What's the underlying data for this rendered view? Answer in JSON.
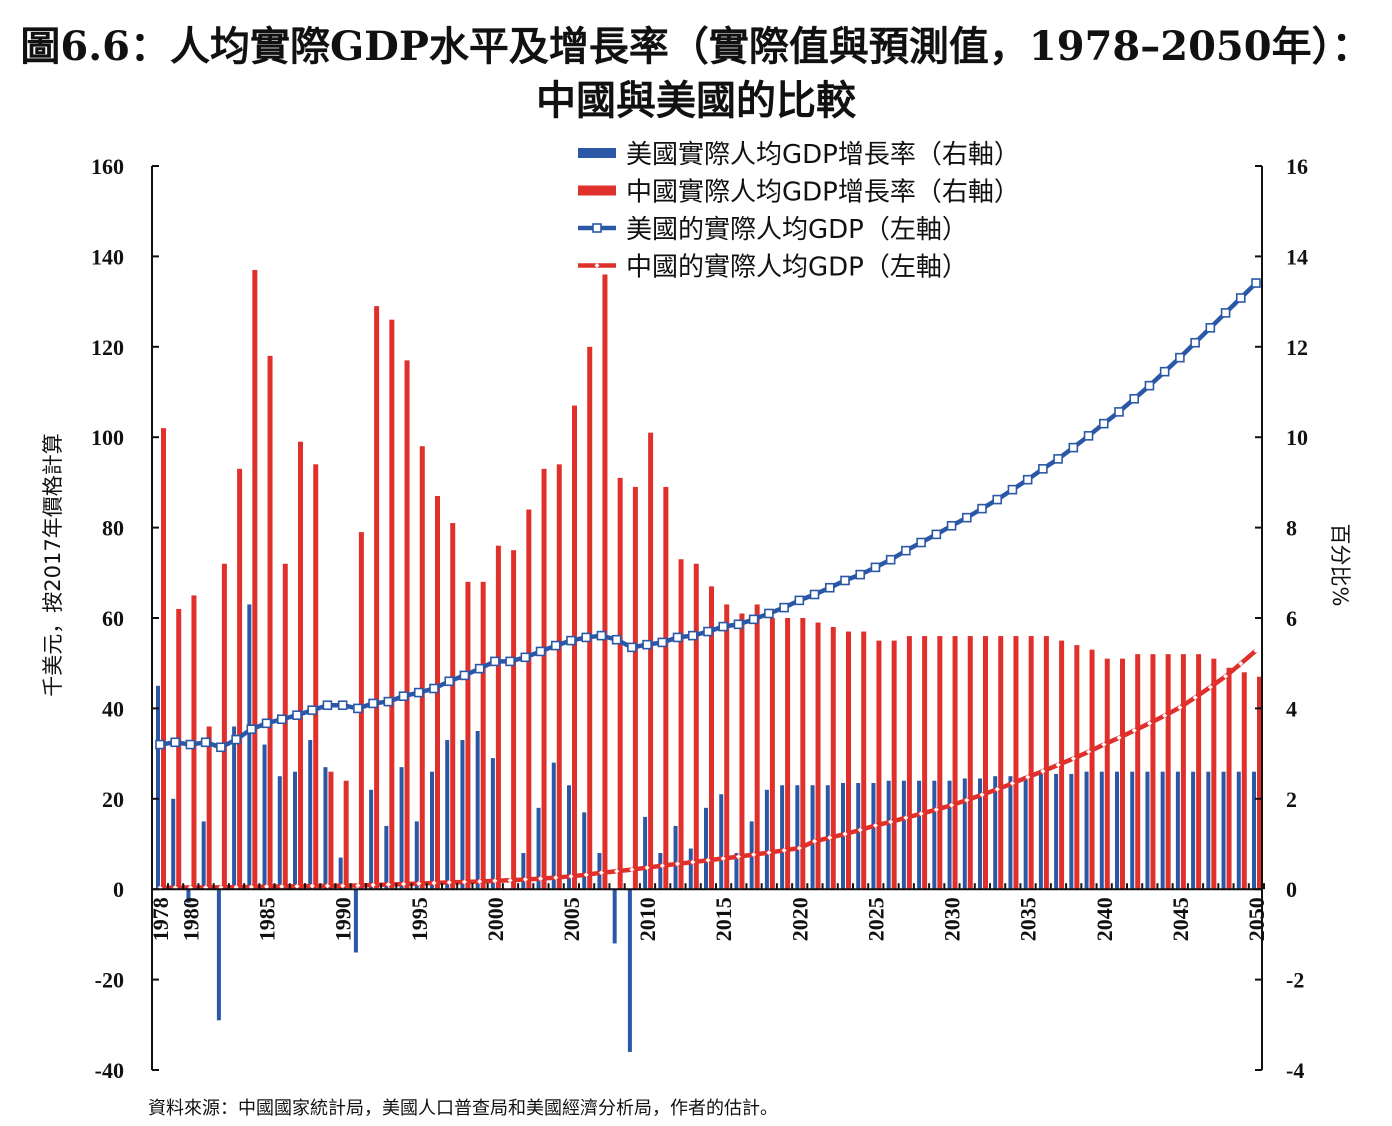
{
  "chart_data": {
    "type": "bar+line",
    "title_line1": "圖6.6：人均實際GDP水平及增長率（實際值與預測值，1978–2050年）：",
    "title_line2": "中國與美國的比較",
    "ylabel_left": "千美元，按2017年價格計算",
    "ylabel_right": "百分比%",
    "source": "資料來源：中國國家統計局，美國人口普查局和美國經濟分析局，作者的估計。",
    "ylim_left": [
      -40,
      160
    ],
    "ylim_right": [
      -4,
      16
    ],
    "yticks_left": [
      -40,
      -20,
      0,
      20,
      40,
      60,
      80,
      100,
      120,
      140,
      160
    ],
    "yticks_right": [
      -4,
      -2,
      0,
      2,
      4,
      6,
      8,
      10,
      12,
      14,
      16
    ],
    "xlim": [
      1978,
      2050
    ],
    "xtick_labels": [
      "1978",
      "1980",
      "1985",
      "1990",
      "1995",
      "2000",
      "2005",
      "2010",
      "2015",
      "2020",
      "2025",
      "2030",
      "2035",
      "2040",
      "2045",
      "2050"
    ],
    "legend_position": "top-center",
    "grid": false,
    "colors": {
      "us": "#2a58a6",
      "china": "#e0302c"
    },
    "series": [
      {
        "name": "美國實際人均GDP增長率（右軸）",
        "type": "bar",
        "axis": "right",
        "color": "#2a58a6",
        "values": [
          4.5,
          2.0,
          -0.3,
          1.5,
          -2.9,
          3.6,
          6.3,
          3.2,
          2.5,
          2.6,
          3.3,
          2.7,
          0.7,
          -1.4,
          2.2,
          1.4,
          2.7,
          1.5,
          2.6,
          3.3,
          3.3,
          3.5,
          2.9,
          0.0,
          0.8,
          1.8,
          2.8,
          2.3,
          1.7,
          0.8,
          -1.2,
          -3.6,
          1.6,
          0.8,
          1.4,
          0.9,
          1.8,
          2.1,
          0.8,
          1.5,
          2.2,
          2.3,
          2.3,
          2.3,
          2.3,
          2.35,
          2.35,
          2.35,
          2.4,
          2.4,
          2.4,
          2.4,
          2.4,
          2.45,
          2.45,
          2.5,
          2.5,
          2.5,
          2.55,
          2.55,
          2.55,
          2.6,
          2.6,
          2.6,
          2.6,
          2.6,
          2.6,
          2.6,
          2.6,
          2.6,
          2.6,
          2.6,
          2.6
        ]
      },
      {
        "name": "中國實際人均GDP增長率（右軸）",
        "type": "bar",
        "axis": "right",
        "color": "#e0302c",
        "values": [
          10.2,
          6.2,
          6.5,
          3.6,
          7.2,
          9.3,
          13.7,
          11.8,
          7.2,
          9.9,
          9.4,
          2.6,
          2.4,
          7.9,
          12.9,
          12.6,
          11.7,
          9.8,
          8.7,
          8.1,
          6.8,
          6.8,
          7.6,
          7.5,
          8.4,
          9.3,
          9.4,
          10.7,
          12.0,
          13.6,
          9.1,
          8.9,
          10.1,
          8.9,
          7.3,
          7.2,
          6.7,
          6.3,
          6.1,
          6.3,
          6.0,
          6.0,
          6.0,
          5.9,
          5.8,
          5.7,
          5.7,
          5.5,
          5.5,
          5.6,
          5.6,
          5.6,
          5.6,
          5.6,
          5.6,
          5.6,
          5.6,
          5.6,
          5.6,
          5.5,
          5.4,
          5.3,
          5.1,
          5.1,
          5.2,
          5.2,
          5.2,
          5.2,
          5.2,
          5.1,
          4.9,
          4.8,
          4.7
        ]
      },
      {
        "name": "美國的實際人均GDP（左軸）",
        "type": "line",
        "axis": "left",
        "color": "#2a58a6",
        "marker": "square",
        "values": [
          32.0,
          32.5,
          32.0,
          32.5,
          31.4,
          33.1,
          35.4,
          36.7,
          37.6,
          38.5,
          39.6,
          40.7,
          40.7,
          40.0,
          41.1,
          41.5,
          42.7,
          43.5,
          44.4,
          46.0,
          47.3,
          48.8,
          50.4,
          50.4,
          51.3,
          52.6,
          53.9,
          55.0,
          55.7,
          56.1,
          55.2,
          53.5,
          54.1,
          54.6,
          55.7,
          56.1,
          57.0,
          58.1,
          58.6,
          59.7,
          61.0,
          62.3,
          63.9,
          65.2,
          66.7,
          68.3,
          69.6,
          71.2,
          72.9,
          74.9,
          76.7,
          78.5,
          80.4,
          82.2,
          84.2,
          86.2,
          88.4,
          90.6,
          93.0,
          95.2,
          97.7,
          100.3,
          103.0,
          105.6,
          108.5,
          111.4,
          114.5,
          117.6,
          120.9,
          124.2,
          127.5,
          130.8,
          134.1
        ]
      },
      {
        "name": "中國的實際人均GDP（左軸）",
        "type": "line",
        "axis": "left",
        "color": "#e0302c",
        "marker": "diamond",
        "values": [
          0.3,
          0.35,
          0.37,
          0.38,
          0.41,
          0.45,
          0.5,
          0.56,
          0.6,
          0.66,
          0.72,
          0.74,
          0.76,
          0.82,
          0.92,
          1.04,
          1.16,
          1.27,
          1.38,
          1.5,
          1.6,
          1.7,
          1.84,
          1.98,
          2.15,
          2.35,
          2.57,
          2.85,
          3.2,
          3.65,
          3.98,
          4.33,
          4.77,
          5.2,
          5.6,
          6.0,
          6.4,
          6.8,
          7.2,
          7.65,
          8.1,
          8.6,
          9.1,
          10.6,
          11.4,
          12.2,
          13.1,
          14.1,
          14.9,
          15.8,
          16.7,
          17.6,
          18.6,
          19.7,
          20.9,
          22.1,
          23.4,
          24.8,
          26.1,
          27.5,
          28.9,
          30.4,
          32.0,
          33.5,
          35.1,
          36.7,
          38.4,
          40.2,
          42.4,
          44.7,
          47.1,
          49.9,
          52.8
        ]
      }
    ]
  }
}
